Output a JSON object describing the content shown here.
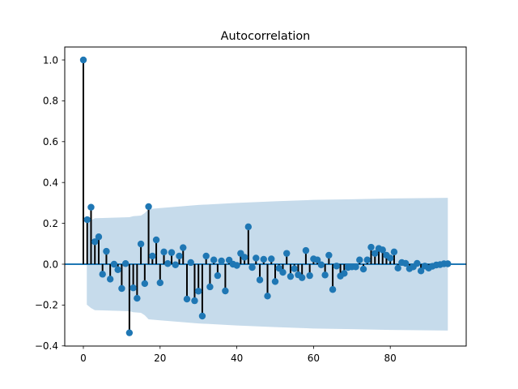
{
  "chart_data": {
    "type": "stem",
    "title": "Autocorrelation",
    "xlabel": "",
    "ylabel": "",
    "xlim": [
      -4.75,
      99.75
    ],
    "ylim": [
      -0.4,
      1.05
    ],
    "xticks": [
      0,
      20,
      40,
      60,
      80
    ],
    "xtick_labels": [
      "0",
      "20",
      "40",
      "60",
      "80"
    ],
    "yticks": [
      -0.4,
      -0.2,
      0.0,
      0.2,
      0.4,
      0.6,
      0.8,
      1.0
    ],
    "ytick_labels": [
      "−0.4",
      "−0.2",
      "0.0",
      "0.2",
      "0.4",
      "0.6",
      "0.8",
      "1.0"
    ],
    "grid": false,
    "legend": null,
    "colors": {
      "marker": "#1f77b4",
      "stem": "#000000",
      "baseline": "#1f77b4",
      "confidence_band": "#c6dbeb"
    },
    "lags": [
      0,
      1,
      2,
      3,
      4,
      5,
      6,
      7,
      8,
      9,
      10,
      11,
      12,
      13,
      14,
      15,
      16,
      17,
      18,
      19,
      20,
      21,
      22,
      23,
      24,
      25,
      26,
      27,
      28,
      29,
      30,
      31,
      32,
      33,
      34,
      35,
      36,
      37,
      38,
      39,
      40,
      41,
      42,
      43,
      44,
      45,
      46,
      47,
      48,
      49,
      50,
      51,
      52,
      53,
      54,
      55,
      56,
      57,
      58,
      59,
      60,
      61,
      62,
      63,
      64,
      65,
      66,
      67,
      68,
      69,
      70,
      71,
      72,
      73,
      74,
      75,
      76,
      77,
      78,
      79,
      80,
      81,
      82,
      83,
      84,
      85,
      86,
      87,
      88,
      89,
      90,
      91,
      92,
      93,
      94,
      95
    ],
    "acf": [
      1.0,
      0.218,
      0.279,
      0.11,
      0.134,
      -0.049,
      0.063,
      -0.073,
      0.0,
      -0.027,
      -0.119,
      0.003,
      -0.336,
      -0.116,
      -0.167,
      0.099,
      -0.095,
      0.282,
      0.04,
      0.119,
      -0.091,
      0.06,
      0.003,
      0.057,
      -0.003,
      0.04,
      0.081,
      -0.171,
      0.008,
      -0.179,
      -0.132,
      -0.254,
      0.04,
      -0.111,
      0.021,
      -0.056,
      0.016,
      -0.131,
      0.02,
      0.0,
      -0.006,
      0.053,
      0.034,
      0.183,
      -0.016,
      0.03,
      -0.077,
      0.024,
      -0.156,
      0.026,
      -0.085,
      -0.02,
      -0.04,
      0.053,
      -0.06,
      -0.022,
      -0.052,
      -0.066,
      0.067,
      -0.056,
      0.026,
      0.021,
      -0.003,
      -0.053,
      0.044,
      -0.124,
      -0.009,
      -0.058,
      -0.045,
      -0.016,
      -0.013,
      -0.013,
      0.021,
      -0.024,
      0.021,
      0.083,
      0.053,
      0.077,
      0.07,
      0.044,
      0.03,
      0.06,
      -0.019,
      0.008,
      0.004,
      -0.022,
      -0.013,
      0.004,
      -0.033,
      -0.009,
      -0.019,
      -0.01,
      -0.004,
      -0.002,
      0.002,
      0.002
    ],
    "confidence_band": {
      "lags": [
        1,
        2,
        3,
        12,
        13,
        15,
        16,
        17,
        20,
        30,
        40,
        50,
        60,
        70,
        80,
        95
      ],
      "upper": [
        0.198,
        0.215,
        0.225,
        0.23,
        0.235,
        0.238,
        0.25,
        0.27,
        0.275,
        0.29,
        0.3,
        0.308,
        0.315,
        0.318,
        0.322,
        0.325
      ],
      "lower": [
        -0.198,
        -0.215,
        -0.225,
        -0.23,
        -0.235,
        -0.238,
        -0.25,
        -0.27,
        -0.275,
        -0.29,
        -0.3,
        -0.308,
        -0.315,
        -0.318,
        -0.322,
        -0.325
      ]
    }
  }
}
